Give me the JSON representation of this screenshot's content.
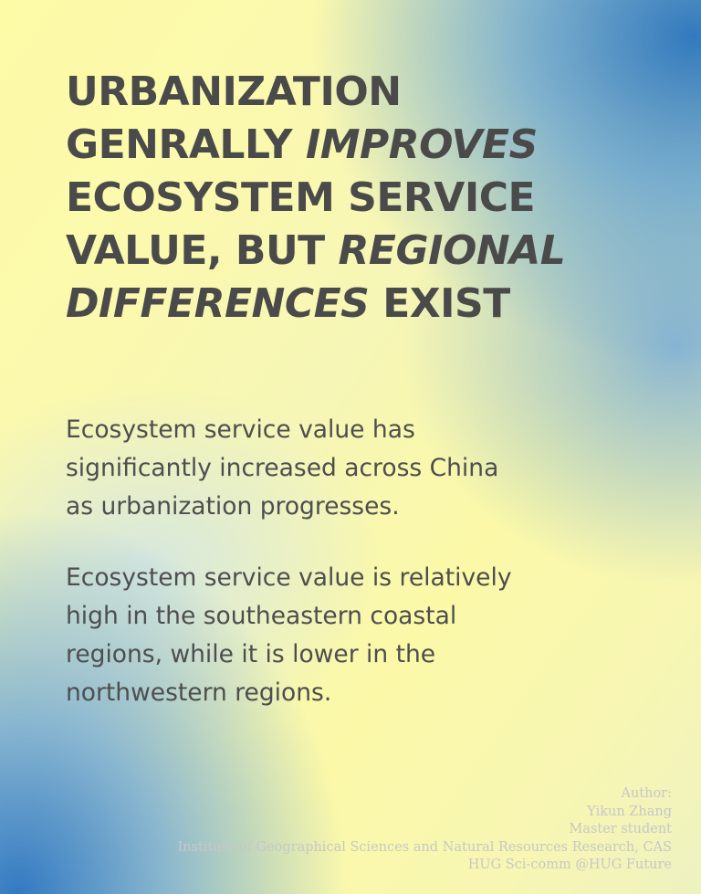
{
  "headline": {
    "l1": "URBANIZATION",
    "l2a": "GENRALLY ",
    "l2b": "IMPROVES",
    "l3": "ECOSYSTEM SERVICE",
    "l4a": "VALUE, BUT ",
    "l4b": "REGIONAL",
    "l5a": "DIFFERENCES",
    "l5b": " EXIST"
  },
  "paragraphs": [
    {
      "lines": [
        "Ecosystem service value has",
        "significantly increased across China",
        "as urbanization progresses."
      ]
    },
    {
      "lines": [
        "Ecosystem service value is relatively",
        "high in the southeastern coastal",
        "regions,  while it is lower in the",
        "northwestern regions."
      ]
    }
  ],
  "credits": {
    "lines": [
      "Author:",
      "Yikun Zhang",
      "Master student",
      "Institute of Geographical Sciences and Natural Resources Research, CAS",
      "HUG Sci-comm  @HUG Future"
    ]
  },
  "colors": {
    "text": "#4a4a4a",
    "credits": "#c7c7c7",
    "blue": "#2873be",
    "yellow": "#fdfba6"
  }
}
